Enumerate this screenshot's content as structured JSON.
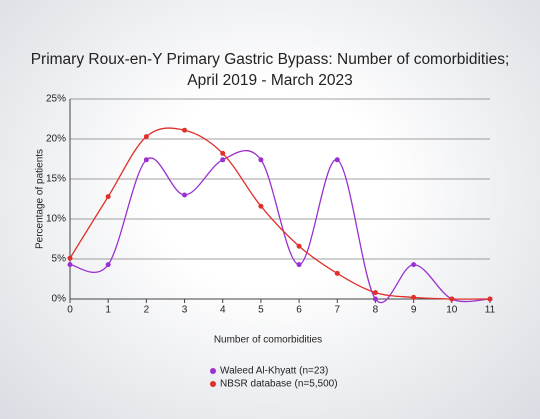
{
  "chart_data": {
    "type": "line",
    "title": [
      "Primary Roux-en-Y Primary Gastric Bypass: Number of comorbidities;",
      "April 2019 - March 2023"
    ],
    "x_label": "Number of comorbidities",
    "y_label": "Percentage of patients",
    "x": [
      0,
      1,
      2,
      3,
      4,
      5,
      6,
      7,
      8,
      9,
      10,
      11
    ],
    "xlim": [
      0,
      11
    ],
    "xticks": [
      0,
      1,
      2,
      3,
      4,
      5,
      6,
      7,
      8,
      9,
      10,
      11
    ],
    "ylim": [
      0,
      25
    ],
    "yticks": [
      {
        "value": 0,
        "label": "0%"
      },
      {
        "value": 5,
        "label": "5%"
      },
      {
        "value": 10,
        "label": "10%"
      },
      {
        "value": 15,
        "label": "15%"
      },
      {
        "value": 20,
        "label": "20%"
      },
      {
        "value": 25,
        "label": "25%"
      }
    ],
    "grid": true,
    "legend": "bottom",
    "series": [
      {
        "name": "Waleed Al-Khyatt (n=23)",
        "color": "#9b30d0",
        "values": [
          4.3,
          4.3,
          17.4,
          13.0,
          17.4,
          17.4,
          4.3,
          17.4,
          0,
          4.3,
          0,
          0
        ]
      },
      {
        "name": "NBSR database (n=5,500)",
        "color": "#e0302a",
        "values": [
          5.1,
          12.8,
          20.3,
          21.1,
          18.2,
          11.6,
          6.6,
          3.2,
          0.8,
          0.2,
          0,
          0
        ]
      }
    ]
  }
}
